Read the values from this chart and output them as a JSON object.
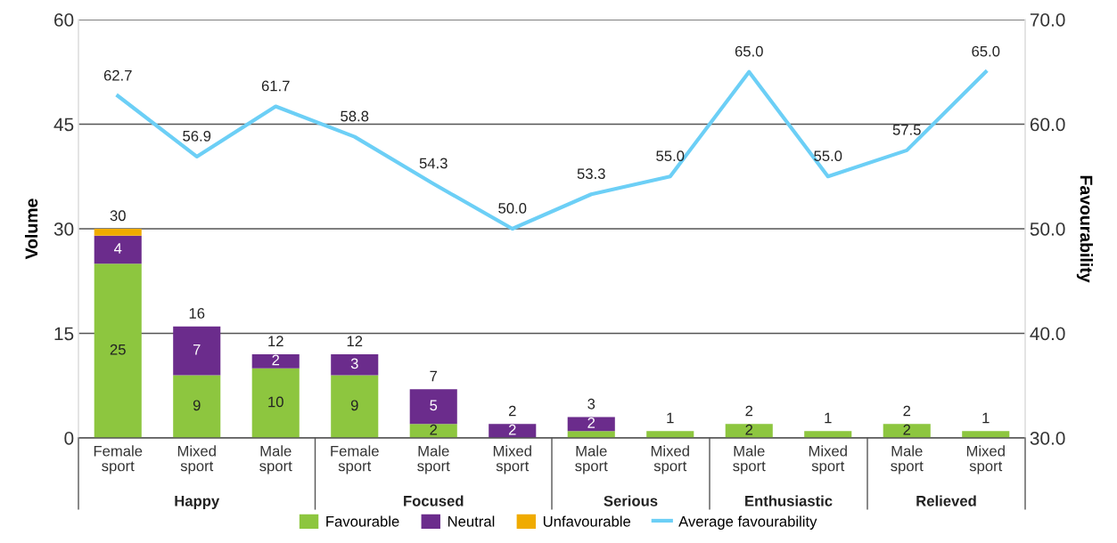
{
  "chart_data": {
    "type": "bar",
    "stacked": true,
    "xlabel": null,
    "ylabel": "Volume",
    "y2label": "Favourability",
    "categories": [
      "Female sport",
      "Mixed sport",
      "Male sport",
      "Female sport",
      "Male sport",
      "Mixed sport",
      "Male sport",
      "Mixed sport",
      "Male sport",
      "Mixed sport",
      "Male sport",
      "Mixed sport"
    ],
    "annotations": [
      "Happy",
      "Focused",
      "Serious",
      "Enthusiastic",
      "Relieved"
    ],
    "series": [
      {
        "name": "Favourable",
        "color": "#8dc63f",
        "values": [
          25,
          9,
          10,
          9,
          2,
          0,
          1,
          1,
          2,
          1,
          2,
          1
        ],
        "value_labels": [
          "25",
          "9",
          "10",
          "9",
          "2",
          null,
          null,
          null,
          "2",
          null,
          "2",
          null
        ]
      },
      {
        "name": "Neutral",
        "color": "#6b2c8c",
        "values": [
          4,
          7,
          2,
          3,
          5,
          2,
          2,
          0,
          0,
          0,
          0,
          0
        ],
        "value_labels": [
          "4",
          "7",
          "2",
          "3",
          "5",
          "2",
          "2",
          null,
          null,
          null,
          null,
          null
        ]
      },
      {
        "name": "Unfavourable",
        "color": "#f0ab00",
        "values": [
          1,
          0,
          0,
          0,
          0,
          0,
          0,
          0,
          0,
          0,
          0,
          0
        ]
      },
      {
        "name": "Average favourability",
        "type": "line",
        "axis": "y2",
        "color": "#6ccff6",
        "values": [
          62.7,
          56.9,
          61.7,
          58.8,
          54.3,
          50.0,
          53.3,
          55.0,
          65.0,
          55.0,
          57.5,
          65.0
        ],
        "value_labels": [
          "62.7",
          "56.9",
          "61.7",
          "58.8",
          "54.3",
          "50.0",
          "53.3",
          "55.0",
          "65.0",
          "55.0",
          "57.5",
          "65.0"
        ]
      }
    ],
    "totals": [
      "30",
      "16",
      "12",
      "12",
      "7",
      "2",
      "3",
      "1",
      "2",
      "1",
      "2",
      "1"
    ],
    "ylim": [
      0,
      60
    ],
    "yticks": [
      0,
      15,
      30,
      45,
      60
    ],
    "y2lim": [
      30,
      70
    ],
    "y2ticks": [
      {
        "value": 30,
        "label": "30.0"
      },
      {
        "value": 40,
        "label": "40.0"
      },
      {
        "value": 50,
        "label": "50.0"
      },
      {
        "value": 60,
        "label": "60.0"
      },
      {
        "value": 70,
        "label": "70.0"
      }
    ],
    "grid": "y",
    "legend": "bottom",
    "marker": "none",
    "line_style": "solid"
  }
}
